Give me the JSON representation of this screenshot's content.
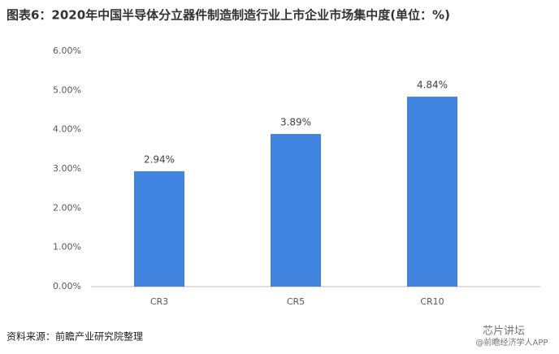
{
  "chart_data": {
    "type": "bar",
    "title": "图表6：2020年中国半导体分立器件制造制造行业上市企业市场集中度(单位：%)",
    "categories": [
      "CR3",
      "CR5",
      "CR10"
    ],
    "values": [
      2.94,
      3.89,
      4.84
    ],
    "value_labels": [
      "2.94%",
      "3.89%",
      "4.84%"
    ],
    "color": "#4185e0",
    "ylim": [
      0,
      6
    ],
    "yticks": [
      {
        "value": 0,
        "label": "0.00%"
      },
      {
        "value": 1,
        "label": "1.00%"
      },
      {
        "value": 2,
        "label": "2.00%"
      },
      {
        "value": 3,
        "label": "3.00%"
      },
      {
        "value": 4,
        "label": "4.00%"
      },
      {
        "value": 5,
        "label": "5.00%"
      },
      {
        "value": 6,
        "label": "6.00%"
      }
    ],
    "grid": false,
    "source": "资料来源：前瞻产业研究院整理",
    "credit": "芯片讲坛",
    "credit_sub": "@前瞻经济学人APP"
  }
}
